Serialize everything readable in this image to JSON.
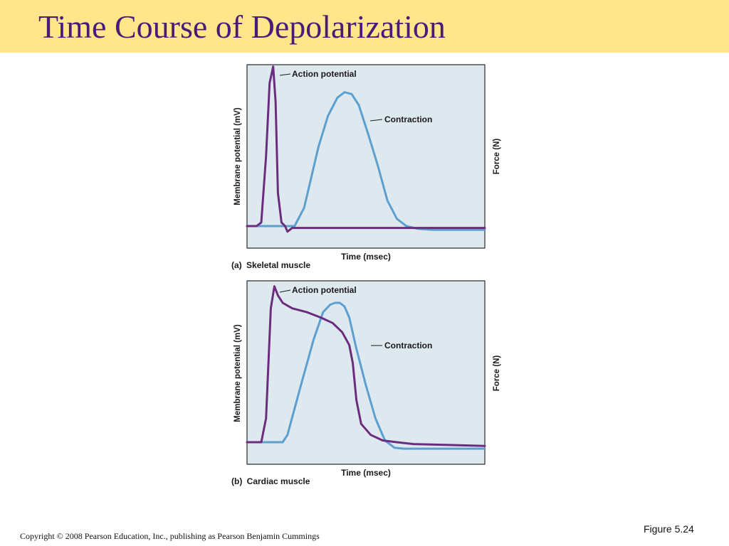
{
  "slide": {
    "title": "Time Course of Depolarization",
    "copyright": "Copyright © 2008 Pearson Education, Inc., publishing as Pearson Benjamin Cummings",
    "figure_number": "Figure 5.24",
    "colors": {
      "title_band": "#ffe68a",
      "title_text": "#4a1a7a",
      "plot_bg": "#dde9ef"
    }
  },
  "panels": [
    {
      "label_letter": "(a)",
      "label_text": "Skeletal muscle",
      "ylabel": "Membrane potential (mV)",
      "y2label": "Force (N)",
      "xlabel": "Time (msec)",
      "series": [
        {
          "name": "Action potential",
          "color": "#6b2c7e"
        },
        {
          "name": "Contraction",
          "color": "#5d9fcf"
        }
      ]
    },
    {
      "label_letter": "(b)",
      "label_text": "Cardiac muscle",
      "ylabel": "Membrane potential (mV)",
      "y2label": "Force (N)",
      "xlabel": "Time (msec)",
      "series": [
        {
          "name": "Action potential",
          "color": "#6b2c7e"
        },
        {
          "name": "Contraction",
          "color": "#5d9fcf"
        }
      ]
    }
  ],
  "chart_data": [
    {
      "type": "line",
      "title": "Skeletal muscle",
      "xlabel": "Time (msec)",
      "ylabel": "Membrane potential (mV)",
      "y2label": "Force (N)",
      "xlim": [
        0,
        100
      ],
      "ylim": [
        0,
        100
      ],
      "grid": false,
      "legend": "none",
      "series": [
        {
          "name": "Action potential",
          "x": [
            0,
            4,
            6,
            8,
            9.5,
            11,
            12,
            13,
            14.5,
            16,
            17,
            19,
            100
          ],
          "y": [
            12,
            12,
            14,
            50,
            90,
            99,
            80,
            30,
            14,
            12,
            9,
            11,
            11
          ]
        },
        {
          "name": "Contraction",
          "x": [
            0,
            20,
            24,
            30,
            34,
            38,
            41,
            44,
            47,
            51,
            55,
            59,
            63,
            67,
            72,
            78,
            100
          ],
          "y": [
            12,
            12,
            22,
            55,
            72,
            82,
            85,
            84,
            78,
            62,
            45,
            26,
            16,
            12,
            10.5,
            10,
            10
          ]
        }
      ]
    },
    {
      "type": "line",
      "title": "Cardiac muscle",
      "xlabel": "Time (msec)",
      "ylabel": "Membrane potential (mV)",
      "y2label": "Force (N)",
      "xlim": [
        0,
        100
      ],
      "ylim": [
        0,
        100
      ],
      "grid": false,
      "legend": "none",
      "series": [
        {
          "name": "Action potential",
          "x": [
            0,
            6,
            8,
            10,
            11.5,
            13,
            15,
            19,
            25,
            31,
            36,
            40,
            43,
            44.5,
            46,
            48,
            52,
            57,
            63,
            70,
            100
          ],
          "y": [
            12,
            12,
            25,
            85,
            97,
            92,
            88,
            85,
            83,
            80,
            77,
            72,
            65,
            55,
            35,
            22,
            16,
            13,
            12,
            11,
            10
          ]
        },
        {
          "name": "Contraction",
          "x": [
            0,
            15,
            17,
            22,
            28,
            32,
            35,
            37,
            39,
            41,
            43,
            46,
            50,
            54,
            58,
            62,
            66,
            100
          ],
          "y": [
            12,
            12,
            16,
            40,
            68,
            83,
            87,
            88,
            88,
            86,
            80,
            63,
            43,
            25,
            13,
            9,
            8.5,
            8.5
          ]
        }
      ]
    }
  ]
}
